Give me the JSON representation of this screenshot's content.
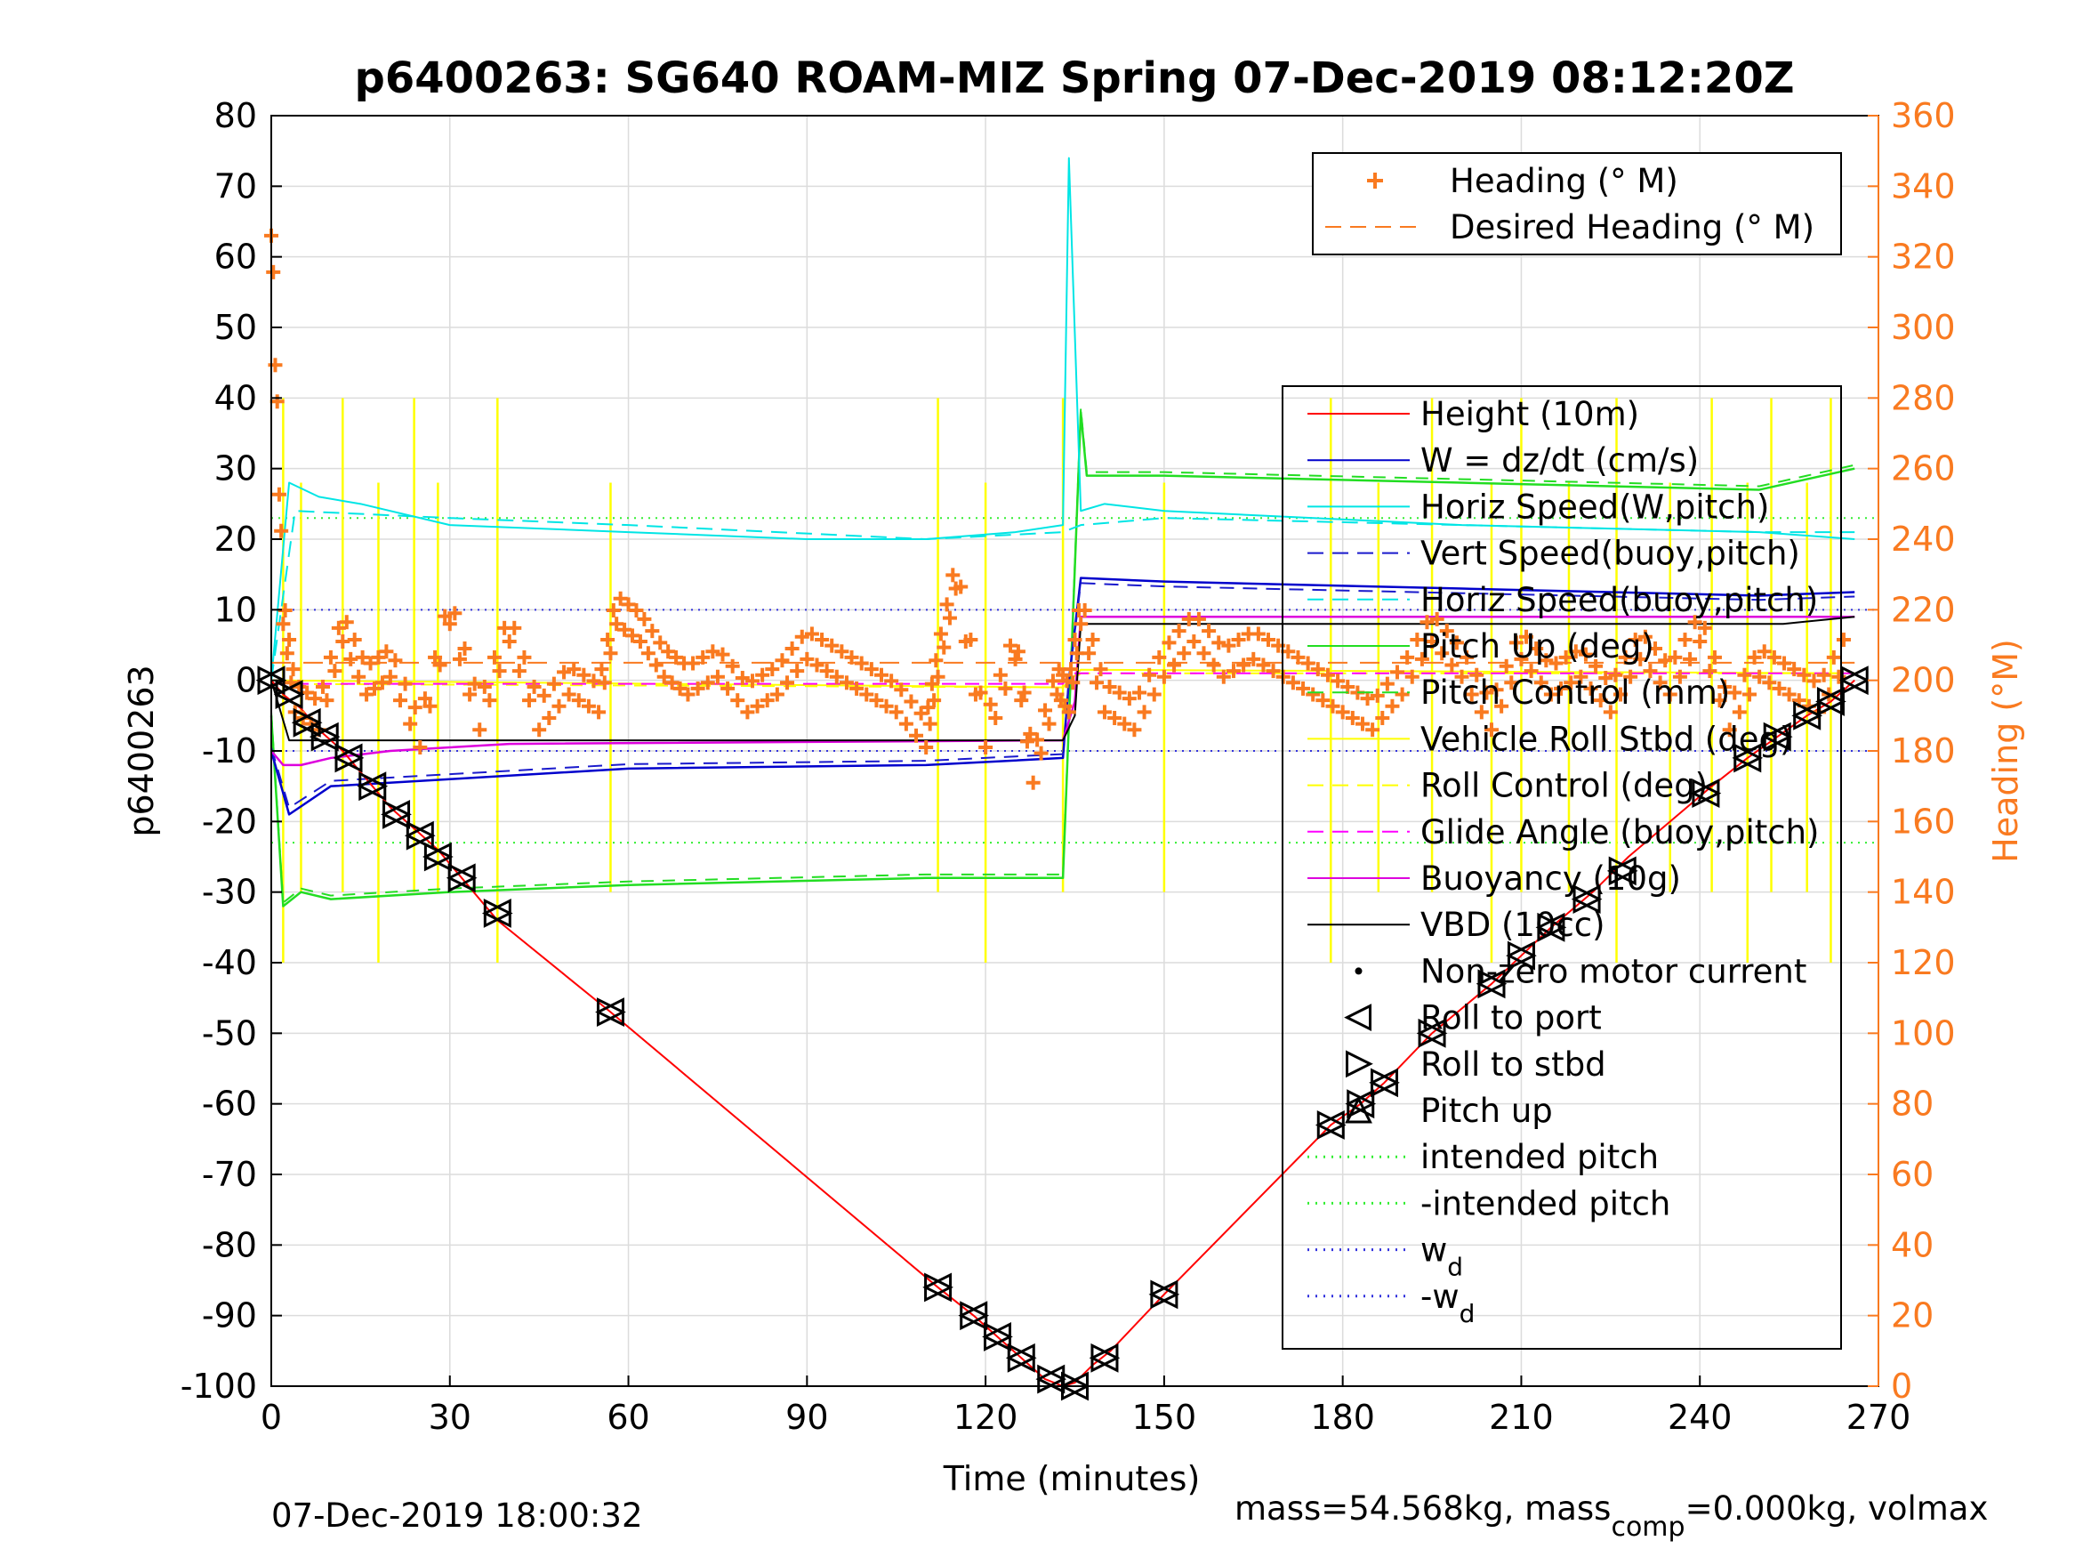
{
  "chart_data": {
    "type": "line",
    "title": "p6400263: SG640 ROAM-MIZ Spring 07-Dec-2019 08:12:20Z",
    "xlabel": "Time (minutes)",
    "ylabel_left": "p6400263",
    "ylabel_right": "Heading (°M)",
    "xlim": [
      0,
      270
    ],
    "ylim_left": [
      -100,
      80
    ],
    "ylim_right": [
      0,
      360
    ],
    "x_ticks": [
      "0",
      "30",
      "60",
      "90",
      "120",
      "150",
      "180",
      "210",
      "240",
      "270"
    ],
    "y_ticks_left": [
      "80",
      "70",
      "60",
      "50",
      "40",
      "30",
      "20",
      "10",
      "0",
      "-10",
      "-20",
      "-30",
      "-40",
      "-50",
      "-60",
      "-70",
      "-80",
      "-90",
      "-100"
    ],
    "y_ticks_right": [
      "360",
      "340",
      "320",
      "300",
      "280",
      "260",
      "240",
      "220",
      "200",
      "180",
      "160",
      "140",
      "120",
      "100",
      "80",
      "60",
      "40",
      "20",
      "0"
    ],
    "grid": true,
    "footer_left": "07-Dec-2019 18:00:32",
    "footer_right": "mass=54.568kg, mass",
    "footer_right_sub": "comp",
    "footer_right_tail": "=0.000kg, volmax",
    "colors": {
      "height": "#ff0000",
      "w": "#0000cc",
      "horiz_speed": "#00e5e5",
      "vert_speed_buoy": "#1a1acc",
      "pitch_up": "#22dd22",
      "pitch_control": "#22dd22",
      "roll": "#ffff00",
      "glide": "#ff00ff",
      "buoyancy": "#dd00dd",
      "vbd": "#000000",
      "heading": "#f97a20",
      "intended": "#33ee33",
      "wd": "#3333dd"
    },
    "legend_heading": [
      {
        "label": "Heading (° M)",
        "style": "plus",
        "color": "#f97a20"
      },
      {
        "label": "Desired Heading (° M)",
        "style": "dash",
        "color": "#f97a20"
      }
    ],
    "legend_main": [
      {
        "label": "Height (10m)",
        "style": "solid",
        "color": "#ff0000"
      },
      {
        "label": "W = dz/dt (cm/s)",
        "style": "solid",
        "color": "#0000cc"
      },
      {
        "label": "Horiz Speed(W,pitch)",
        "style": "solid",
        "color": "#00e5e5"
      },
      {
        "label": "Vert Speed(buoy,pitch)",
        "style": "dash",
        "color": "#1a1acc"
      },
      {
        "label": "Horiz Speed(buoy,pitch)",
        "style": "dash",
        "color": "#00e5e5"
      },
      {
        "label": "Pitch Up (deg)",
        "style": "solid",
        "color": "#22dd22"
      },
      {
        "label": "Pitch Control (mm)",
        "style": "dash",
        "color": "#22dd22"
      },
      {
        "label": "Vehicle Roll Stbd (deg)",
        "style": "solid",
        "color": "#ffff00"
      },
      {
        "label": "Roll Control (deg)",
        "style": "dash",
        "color": "#ffff00"
      },
      {
        "label": "Glide Angle (buoy,pitch)",
        "style": "dash",
        "color": "#ff00ff"
      },
      {
        "label": "Buoyancy (10g)",
        "style": "solid",
        "color": "#dd00dd"
      },
      {
        "label": "VBD (10cc)",
        "style": "solid",
        "color": "#000000"
      },
      {
        "label": "Non-zero motor current",
        "style": "dot",
        "color": "#000000"
      },
      {
        "label": "Roll to port",
        "style": "tri-left",
        "color": "#000000"
      },
      {
        "label": "Roll to stbd",
        "style": "tri-right",
        "color": "#000000"
      },
      {
        "label": "Pitch up",
        "style": "tri-up",
        "color": "#000000"
      },
      {
        "label": "intended pitch",
        "style": "dotted",
        "color": "#33ee33"
      },
      {
        "label": "-intended pitch",
        "style": "dotted",
        "color": "#33ee33"
      },
      {
        "label": "w",
        "sub": "d",
        "style": "dotted",
        "color": "#3333dd"
      },
      {
        "label": "-w",
        "sub": "d",
        "style": "dotted",
        "color": "#3333dd"
      }
    ],
    "reference_lines": {
      "intended_pitch": 23,
      "wd": 10
    },
    "height": {
      "x": [
        0,
        2,
        5,
        8,
        12,
        16,
        20,
        24,
        28,
        32,
        38,
        57,
        112,
        118,
        122,
        126,
        130,
        133,
        135,
        138,
        141,
        150,
        178,
        183,
        187,
        195,
        205,
        210,
        215,
        222,
        228,
        235,
        242,
        248,
        253,
        258,
        262,
        266
      ],
      "y": [
        0,
        -2,
        -4,
        -7,
        -10,
        -14,
        -18,
        -21,
        -24,
        -28,
        -34,
        -47,
        -86,
        -90,
        -93,
        -96,
        -99,
        -100,
        -99.5,
        -97,
        -95,
        -87,
        -63,
        -60,
        -57,
        -50,
        -43,
        -39,
        -35,
        -30,
        -25,
        -20,
        -15,
        -11,
        -8,
        -5,
        -3,
        0
      ]
    },
    "vbd": {
      "x": [
        0,
        3,
        10,
        133,
        135,
        136,
        254,
        266
      ],
      "y": [
        0,
        -8.5,
        -8.5,
        -8.5,
        -5,
        8,
        8,
        9
      ]
    },
    "buoyancy": {
      "x": [
        0,
        2,
        5,
        10,
        20,
        30,
        40,
        133,
        135,
        136,
        266
      ],
      "y": [
        -10,
        -12,
        -12,
        -11,
        -10,
        -9.5,
        -9,
        -8.5,
        -3,
        9,
        9
      ]
    },
    "glide": {
      "x": [
        0,
        133,
        134,
        266
      ],
      "y": [
        -0.5,
        -0.5,
        1,
        1
      ]
    },
    "pitch": {
      "x": [
        0,
        2,
        5,
        10,
        30,
        60,
        110,
        133,
        136,
        137,
        150,
        200,
        250,
        266
      ],
      "y": [
        -5,
        -32,
        -30,
        -31,
        -30,
        -29,
        -28,
        -28,
        38,
        29,
        29,
        28,
        27,
        30
      ]
    },
    "horiz_speed": {
      "x": [
        0,
        3,
        8,
        15,
        30,
        60,
        90,
        110,
        125,
        133,
        134,
        136,
        140,
        150,
        200,
        250,
        266
      ],
      "y": [
        0,
        28,
        26,
        25,
        22,
        21,
        20,
        20,
        21,
        22,
        74,
        24,
        25,
        24,
        22,
        21,
        20
      ]
    },
    "vert_speed": {
      "x": [
        0,
        3,
        10,
        30,
        60,
        110,
        133,
        134,
        136,
        150,
        200,
        250,
        266
      ],
      "y": [
        -10,
        -19,
        -15,
        -14,
        -12.5,
        -12,
        -11,
        0,
        14.5,
        14,
        13,
        12,
        12.5
      ]
    },
    "heading": {
      "x": [
        0,
        2,
        4,
        8,
        12,
        16,
        20,
        25,
        30,
        35,
        40,
        45,
        50,
        55,
        58,
        62,
        66,
        70,
        75,
        80,
        85,
        90,
        95,
        100,
        105,
        110,
        112,
        115,
        120,
        125,
        128,
        132,
        134,
        136,
        140,
        145,
        150,
        155,
        160,
        165,
        170,
        175,
        180,
        185,
        190,
        195,
        200,
        205,
        210,
        215,
        220,
        225,
        230,
        235,
        240,
        245,
        250,
        255,
        260,
        265
      ],
      "y": [
        330,
        220,
        195,
        190,
        215,
        200,
        205,
        185,
        220,
        190,
        215,
        190,
        200,
        195,
        220,
        215,
        205,
        200,
        205,
        195,
        200,
        210,
        205,
        200,
        195,
        185,
        205,
        230,
        185,
        210,
        175,
        200,
        195,
        220,
        195,
        190,
        205,
        215,
        205,
        210,
        205,
        200,
        195,
        190,
        200,
        215,
        205,
        190,
        210,
        200,
        205,
        195,
        210,
        200,
        215,
        190,
        205,
        200,
        195,
        210
      ]
    }
  }
}
